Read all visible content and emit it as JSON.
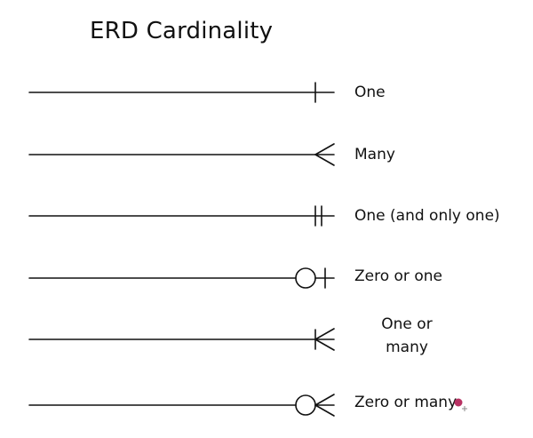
{
  "title": "ERD Cardinality",
  "colors": {
    "line": "#111111",
    "cursor_dot": "#b83263",
    "background": "#ffffff"
  },
  "rows": [
    {
      "notation": "one",
      "label": "One"
    },
    {
      "notation": "many",
      "label": "Many"
    },
    {
      "notation": "one-and-only-one",
      "label": "One (and only one)"
    },
    {
      "notation": "zero-or-one",
      "label": "Zero or one"
    },
    {
      "notation": "one-or-many",
      "label": "One or many"
    },
    {
      "notation": "zero-or-many",
      "label": "Zero or many"
    }
  ],
  "cursor_icon": "pointer-dot-cursor-icon"
}
